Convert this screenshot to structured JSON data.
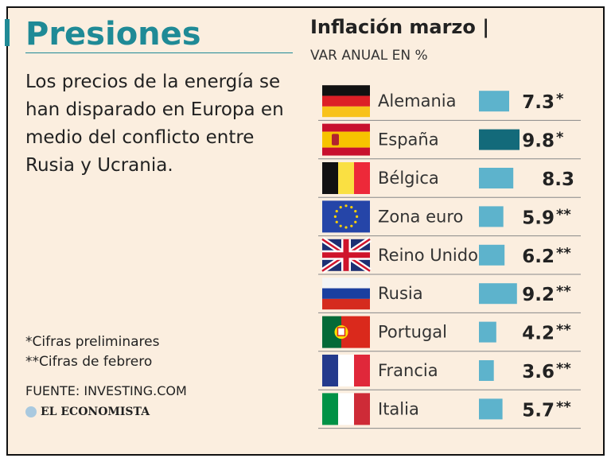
{
  "title": "Presiones",
  "description": "Los precios de la energía se han disparado en Europa en medio del conflicto entre Rusia y Ucrania.",
  "notes": [
    "*Cifras preliminares",
    "**Cifras de febrero"
  ],
  "source": "FUENTE: INVESTING.COM",
  "brand": "EL ECONOMISTA",
  "chart_data": {
    "type": "bar",
    "title": "Inflación marzo |",
    "subtitle": "VAR ANUAL EN %",
    "categories": [
      "Alemania",
      "España",
      "Bélgica",
      "Zona euro",
      "Reino Unido",
      "Rusia",
      "Portugal",
      "Francia",
      "Italia"
    ],
    "values": [
      7.3,
      9.8,
      8.3,
      5.9,
      6.2,
      9.2,
      4.2,
      3.6,
      5.7
    ],
    "value_labels": [
      "7.3",
      "9.8",
      "8.3",
      "5.9",
      "6.2",
      "9.2",
      "4.2",
      "3.6",
      "5.7"
    ],
    "marks": [
      "*",
      "*",
      "",
      "**",
      "**",
      "**",
      "**",
      "**",
      "**"
    ],
    "flags": [
      "germany-flag",
      "spain-flag",
      "belgium-flag",
      "eu-flag",
      "uk-flag",
      "russia-flag",
      "portugal-flag",
      "france-flag",
      "italy-flag"
    ],
    "colors": {
      "bar": "#5db3cc",
      "bar_highlight": "#136a7a",
      "accent": "#1f8a96"
    },
    "highlight": "España"
  }
}
